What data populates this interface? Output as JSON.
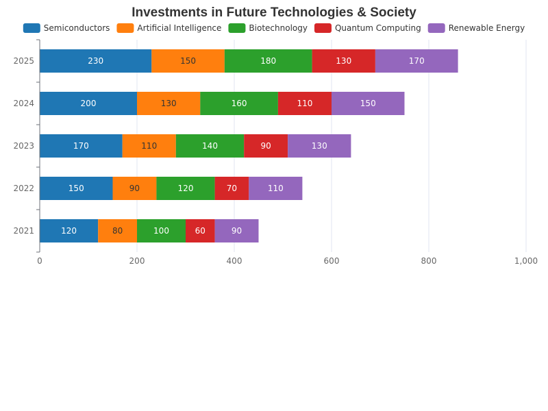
{
  "chart_data": {
    "type": "bar",
    "orientation": "horizontal",
    "stacked": true,
    "title": "Investments in Future Technologies & Society",
    "categories": [
      "2021",
      "2022",
      "2023",
      "2024",
      "2025"
    ],
    "series": [
      {
        "name": "Semiconductors",
        "color": "#1f77b4",
        "label_color": "#ffffff",
        "values": [
          120,
          150,
          170,
          200,
          230
        ]
      },
      {
        "name": "Artificial Intelligence",
        "color": "#ff7f0e",
        "label_color": "#333333",
        "values": [
          80,
          90,
          110,
          130,
          150
        ]
      },
      {
        "name": "Biotechnology",
        "color": "#2ca02c",
        "label_color": "#ffffff",
        "values": [
          100,
          120,
          140,
          160,
          180
        ]
      },
      {
        "name": "Quantum Computing",
        "color": "#d62728",
        "label_color": "#ffffff",
        "values": [
          60,
          70,
          90,
          110,
          130
        ]
      },
      {
        "name": "Renewable Energy",
        "color": "#9467bd",
        "label_color": "#ffffff",
        "values": [
          90,
          110,
          130,
          150,
          170
        ]
      }
    ],
    "xlim": [
      0,
      1000
    ],
    "x_ticks": [
      0,
      200,
      400,
      600,
      800,
      1000
    ],
    "x_tick_labels": [
      "0",
      "200",
      "400",
      "600",
      "800",
      "1,000"
    ],
    "grid": "vertical",
    "legend_position": "top"
  }
}
